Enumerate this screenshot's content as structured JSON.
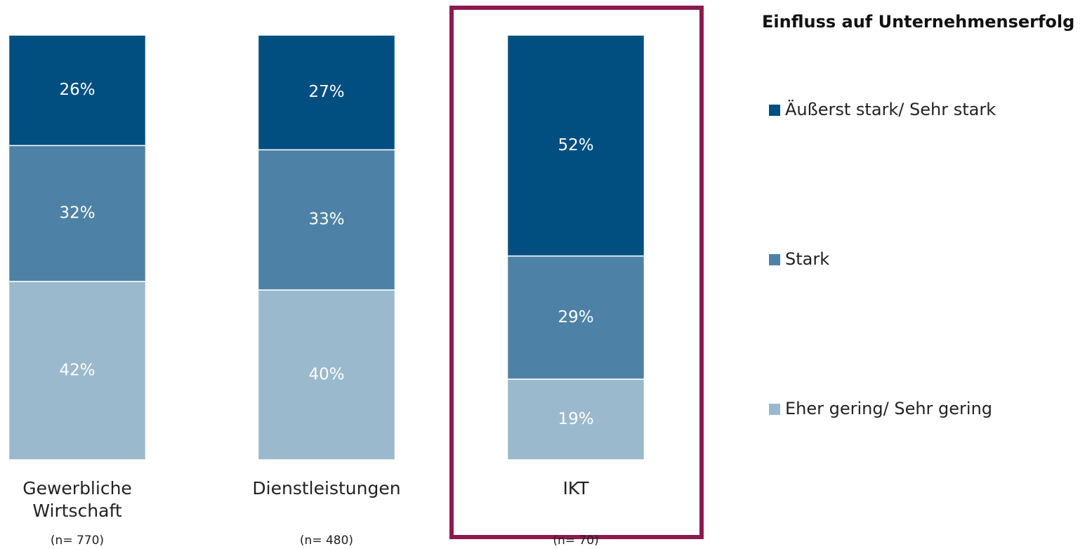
{
  "chart_data": {
    "type": "stacked_bar",
    "legend_title": "Einfluss auf Unternehmenserfolg",
    "categories": [
      "Gewerbliche Wirtschaft",
      "Dienstleistungen",
      "IKT"
    ],
    "category_notes": [
      "(n= 770)",
      "(n= 480)",
      "(n= 70)"
    ],
    "series": [
      {
        "name": "Äußerst stark/ Sehr stark",
        "color": "#004f80",
        "values": [
          26,
          27,
          52
        ],
        "value_labels": [
          "26%",
          "27%",
          "52%"
        ]
      },
      {
        "name": "Stark",
        "color": "#4d82a6",
        "values": [
          32,
          33,
          29
        ],
        "value_labels": [
          "32%",
          "33%",
          "29%"
        ]
      },
      {
        "name": "Eher gering/ Sehr gering",
        "color": "#9bb9cc",
        "values": [
          42,
          40,
          19
        ],
        "value_labels": [
          "42%",
          "40%",
          "19%"
        ]
      }
    ],
    "legend": "right"
  }
}
